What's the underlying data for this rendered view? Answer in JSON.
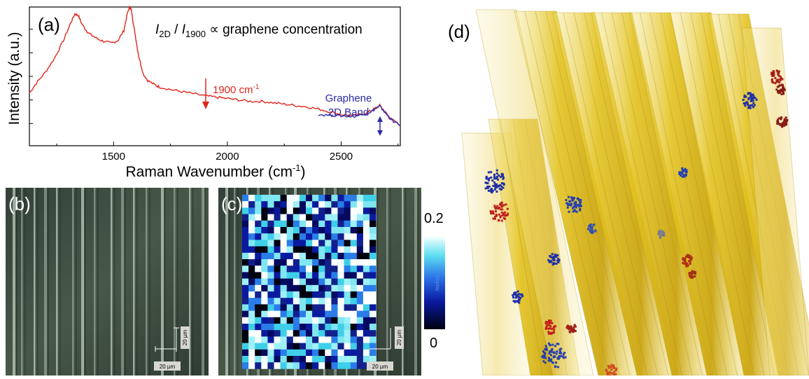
{
  "panel_a": {
    "label": "(a)",
    "annotation": {
      "i2d": "I",
      "sub2d": "2D",
      "slash": " / ",
      "i1900": "I",
      "sub1900": "1900",
      "rest": " ∝  graphene concentration"
    },
    "marker_label": "1900 cm",
    "marker_sup": "-1",
    "band_line1": "Graphene",
    "band_line2": "2D Band"
  },
  "chart_data": {
    "type": "line",
    "title": "",
    "xlabel": "Raman Wavenumber (cm",
    "xlabel_sup": "-1",
    "xlabel_close": ")",
    "ylabel": "Intensity (a.u.)",
    "xlim": [
      1130,
      2760
    ],
    "ylim": [
      0,
      1
    ],
    "xticks": [
      1500,
      2000,
      2500
    ],
    "grid": false,
    "series": [
      {
        "color": "#e0261d",
        "x": [
          1130,
          1160,
          1200,
          1240,
          1280,
          1310,
          1330,
          1345,
          1360,
          1380,
          1400,
          1430,
          1460,
          1490,
          1520,
          1545,
          1560,
          1570,
          1578,
          1585,
          1595,
          1610,
          1630,
          1650,
          1680,
          1700,
          1750,
          1800,
          1850,
          1900,
          1950,
          2000,
          2050,
          2100,
          2150,
          2200,
          2250,
          2300,
          2350,
          2400,
          2450,
          2500,
          2550,
          2600,
          2630,
          2650,
          2670,
          2690,
          2710,
          2730,
          2760
        ],
        "y": [
          0.38,
          0.45,
          0.53,
          0.63,
          0.76,
          0.88,
          0.95,
          0.94,
          0.88,
          0.83,
          0.8,
          0.77,
          0.75,
          0.74,
          0.76,
          0.83,
          0.95,
          1.0,
          0.98,
          0.9,
          0.8,
          0.65,
          0.52,
          0.47,
          0.44,
          0.425,
          0.405,
          0.39,
          0.375,
          0.36,
          0.35,
          0.34,
          0.33,
          0.32,
          0.32,
          0.31,
          0.3,
          0.29,
          0.28,
          0.265,
          0.245,
          0.225,
          0.215,
          0.23,
          0.25,
          0.27,
          0.29,
          0.25,
          0.21,
          0.18,
          0.15
        ]
      },
      {
        "color": "#2a2aa8",
        "x": [
          2400,
          2450,
          2500,
          2550,
          2600,
          2630,
          2650,
          2670,
          2690,
          2710,
          2730,
          2760
        ],
        "y": [
          0.225,
          0.22,
          0.215,
          0.21,
          0.225,
          0.245,
          0.265,
          0.285,
          0.245,
          0.205,
          0.175,
          0.145
        ]
      }
    ]
  },
  "panel_b": {
    "label": "(b)",
    "scale_v": "20 µm",
    "scale_h": "20 µm"
  },
  "panel_c": {
    "label": "(c)",
    "scale_v": "20 µm",
    "scale_h": "20 µm"
  },
  "colorbar": {
    "max": "0.2",
    "min": "0",
    "inner": "Display"
  },
  "panel_d": {
    "label": "(d)"
  },
  "colors": {
    "red_trace": "#e0261d",
    "blue_trace": "#2a2aa8",
    "microscope_bg": "#3b4a3b",
    "fiber_yellow": "#e3c21f",
    "cluster_blue": "#1f2fa8",
    "cluster_red": "#b0201a"
  }
}
